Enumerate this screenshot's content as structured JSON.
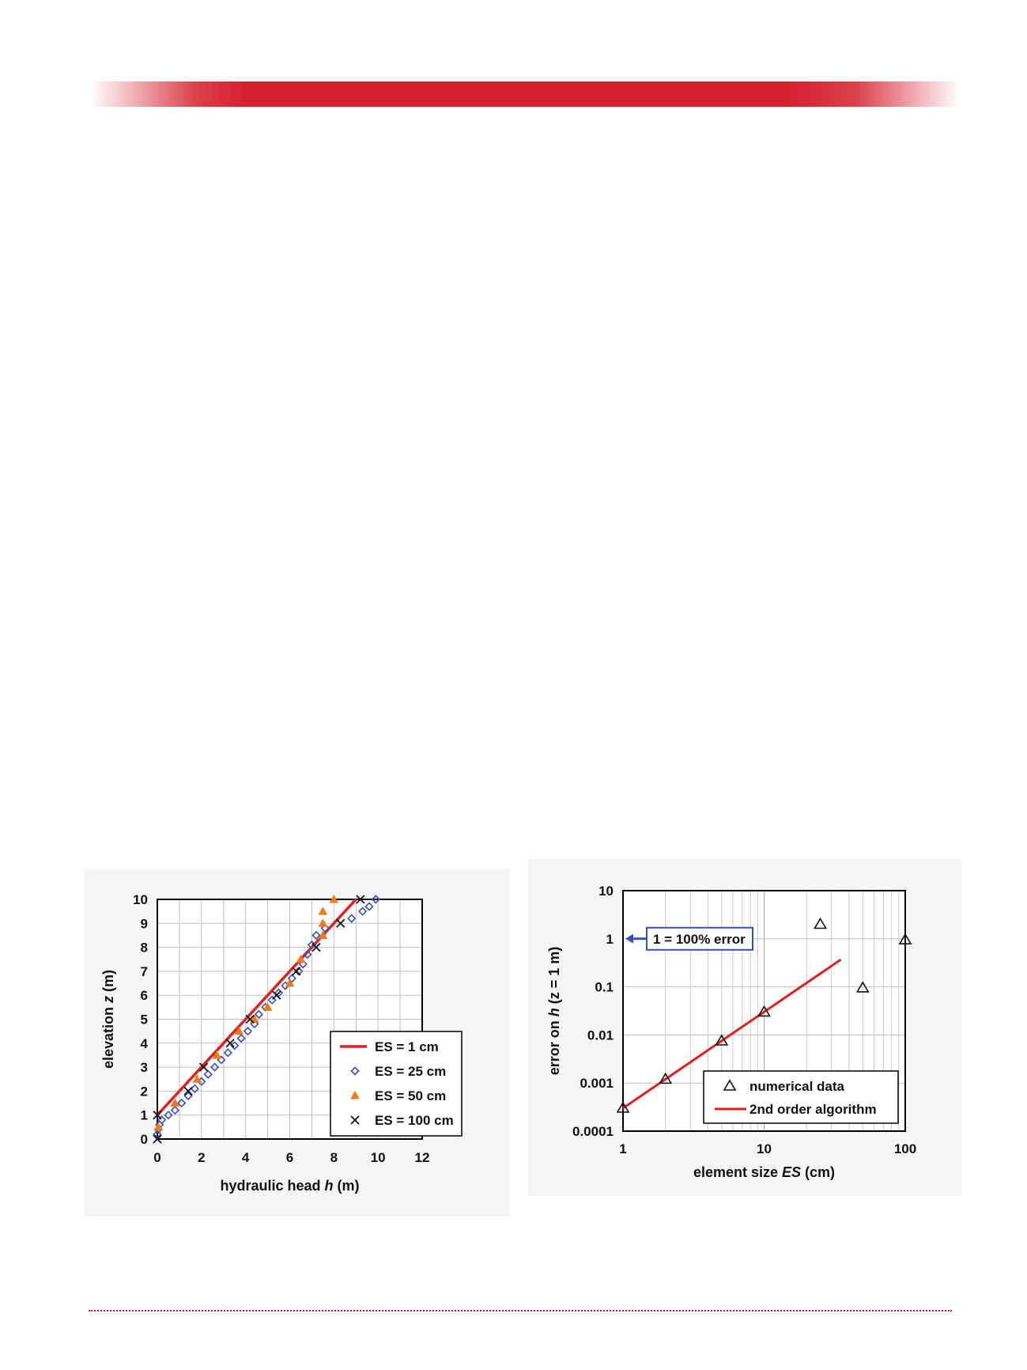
{
  "colors": {
    "banner": "#d41f2e",
    "line_red": "#e02020",
    "diamond_blue": "#3a4fb8",
    "triangle_orange": "#f07a1a",
    "cross_black": "#111111"
  },
  "chart_data": [
    {
      "type": "scatter",
      "xlabel": "hydraulic head",
      "xlabel_var": "h",
      "xlabel_unit": "(m)",
      "ylabel": "elevation",
      "ylabel_var": "z",
      "ylabel_unit": "(m)",
      "xlim": [
        0,
        12
      ],
      "ylim": [
        0,
        10
      ],
      "xticks": [
        0,
        2,
        4,
        6,
        8,
        10,
        12
      ],
      "yticks": [
        0,
        1,
        2,
        3,
        4,
        5,
        6,
        7,
        8,
        9,
        10
      ],
      "grid": true,
      "legend_position": "bottom-right",
      "series": [
        {
          "name": "ES = 1 cm",
          "kind": "line",
          "x": [
            0,
            9.0
          ],
          "y": [
            1,
            10
          ]
        },
        {
          "name": "ES = 25 cm",
          "kind": "diamond",
          "x": [
            0,
            0.05,
            0.1,
            0.2,
            0.5,
            0.8,
            1.1,
            1.4,
            1.7,
            2.0,
            2.3,
            2.6,
            2.9,
            3.2,
            3.5,
            3.8,
            4.1,
            4.4,
            4.6,
            4.9,
            5.2,
            5.5,
            5.8,
            6.1,
            6.4,
            6.6,
            6.8,
            7.0,
            7.2,
            7.6,
            8.8,
            9.3,
            9.6,
            9.9
          ],
          "y": [
            0.2,
            0.4,
            0.6,
            0.8,
            1.0,
            1.2,
            1.5,
            1.8,
            2.1,
            2.4,
            2.7,
            3.0,
            3.3,
            3.6,
            3.9,
            4.2,
            4.5,
            4.8,
            5.2,
            5.5,
            5.8,
            6.1,
            6.4,
            6.7,
            7.0,
            7.3,
            7.7,
            8.1,
            8.5,
            8.8,
            9.2,
            9.5,
            9.7,
            10.0
          ]
        },
        {
          "name": "ES = 50 cm",
          "kind": "triangle",
          "x": [
            0.05,
            0.8,
            1.8,
            2.7,
            3.7,
            4.4,
            5.0,
            6.0,
            6.5,
            7.5,
            7.5,
            7.5,
            8.0
          ],
          "y": [
            0.5,
            1.5,
            2.5,
            3.5,
            4.5,
            5.0,
            5.5,
            6.5,
            7.5,
            8.5,
            9.0,
            9.5,
            10.0
          ]
        },
        {
          "name": "ES = 100 cm",
          "kind": "cross",
          "x": [
            0,
            0,
            1.4,
            2.1,
            3.3,
            4.2,
            5.4,
            6.3,
            7.2,
            8.3,
            9.2
          ],
          "y": [
            0,
            1,
            2,
            3,
            4,
            5,
            6,
            7,
            8,
            9,
            10
          ]
        }
      ]
    },
    {
      "type": "scatter",
      "xlabel": "element size",
      "xlabel_var": "ES",
      "xlabel_unit": "(cm)",
      "ylabel": "error on",
      "ylabel_var": "h",
      "ylabel_rest": "(z = 1 m)",
      "xscale": "log",
      "yscale": "log",
      "xlim": [
        1,
        100
      ],
      "ylim": [
        0.0001,
        10
      ],
      "xtick_labels": [
        "1",
        "10",
        "100"
      ],
      "ytick_labels": [
        "0.0001",
        "0.001",
        "0.01",
        "0.1",
        "1",
        "10"
      ],
      "grid": true,
      "legend_position": "bottom-right",
      "annotation": "1 = 100% error",
      "series": [
        {
          "name": "numerical data",
          "kind": "triangle",
          "x": [
            1,
            2,
            5,
            10,
            25,
            50,
            100
          ],
          "y": [
            0.0003,
            0.0012,
            0.0075,
            0.03,
            2.0,
            0.095,
            0.95
          ]
        },
        {
          "name": "2nd order algorithm",
          "kind": "line",
          "x": [
            1,
            35
          ],
          "y": [
            0.0003,
            0.37
          ]
        }
      ]
    }
  ]
}
